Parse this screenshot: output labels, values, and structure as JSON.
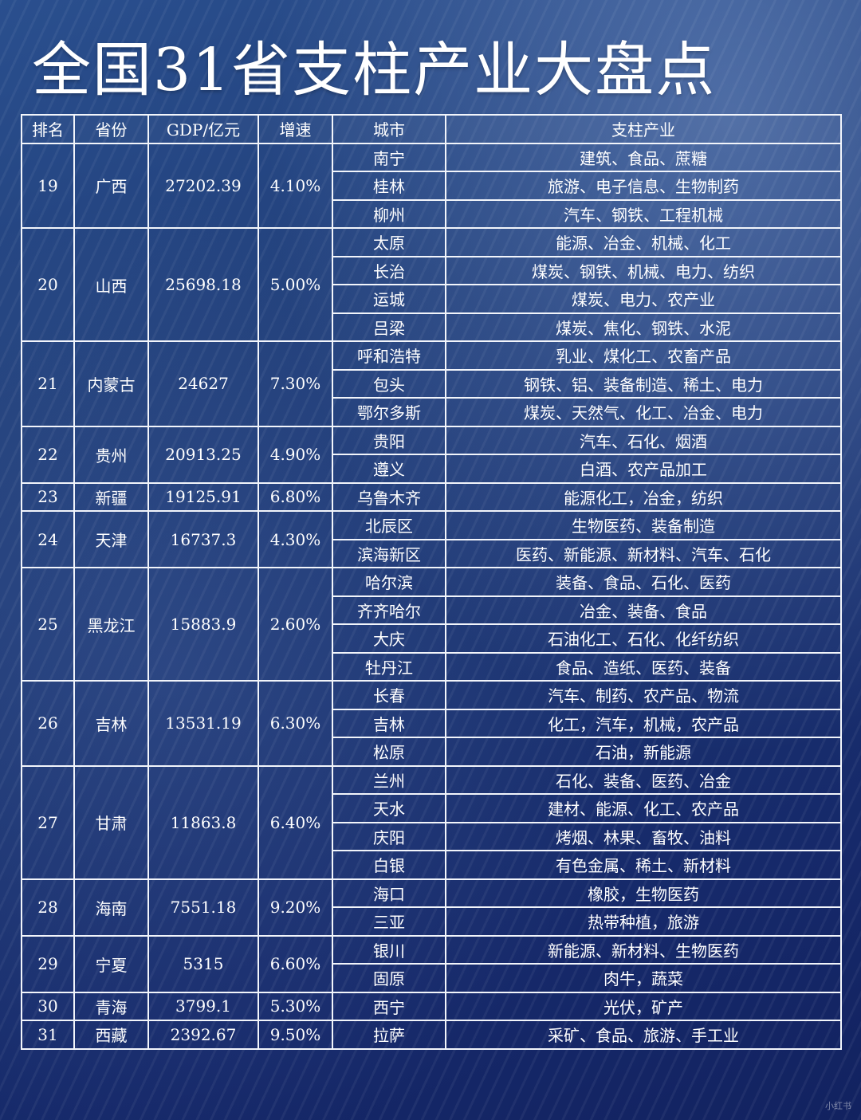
{
  "title": "全国31省支柱产业大盘点",
  "headers": [
    "排名",
    "省份",
    "GDP/亿元",
    "增速",
    "城市",
    "支柱产业"
  ],
  "provinces": [
    {
      "rank": "19",
      "province": "广西",
      "gdp": "27202.39",
      "growth": "4.10%",
      "cities": [
        {
          "city": "南宁",
          "industries": "建筑、食品、蔗糖"
        },
        {
          "city": "桂林",
          "industries": "旅游、电子信息、生物制药"
        },
        {
          "city": "柳州",
          "industries": "汽车、钢铁、工程机械"
        }
      ]
    },
    {
      "rank": "20",
      "province": "山西",
      "gdp": "25698.18",
      "growth": "5.00%",
      "cities": [
        {
          "city": "太原",
          "industries": "能源、冶金、机械、化工"
        },
        {
          "city": "长治",
          "industries": "煤炭、钢铁、机械、电力、纺织"
        },
        {
          "city": "运城",
          "industries": "煤炭、电力、农产业"
        },
        {
          "city": "吕梁",
          "industries": "煤炭、焦化、钢铁、水泥"
        }
      ]
    },
    {
      "rank": "21",
      "province": "内蒙古",
      "gdp": "24627",
      "growth": "7.30%",
      "cities": [
        {
          "city": "呼和浩特",
          "industries": "乳业、煤化工、农畜产品"
        },
        {
          "city": "包头",
          "industries": "钢铁、铝、装备制造、稀土、电力"
        },
        {
          "city": "鄂尔多斯",
          "industries": "煤炭、天然气、化工、冶金、电力"
        }
      ]
    },
    {
      "rank": "22",
      "province": "贵州",
      "gdp": "20913.25",
      "growth": "4.90%",
      "cities": [
        {
          "city": "贵阳",
          "industries": "汽车、石化、烟酒"
        },
        {
          "city": "遵义",
          "industries": "白酒、农产品加工"
        }
      ]
    },
    {
      "rank": "23",
      "province": "新疆",
      "gdp": "19125.91",
      "growth": "6.80%",
      "cities": [
        {
          "city": "乌鲁木齐",
          "industries": "能源化工，冶金，纺织"
        }
      ]
    },
    {
      "rank": "24",
      "province": "天津",
      "gdp": "16737.3",
      "growth": "4.30%",
      "cities": [
        {
          "city": "北辰区",
          "industries": "生物医药、装备制造"
        },
        {
          "city": "滨海新区",
          "industries": "医药、新能源、新材料、汽车、石化"
        }
      ]
    },
    {
      "rank": "25",
      "province": "黑龙江",
      "gdp": "15883.9",
      "growth": "2.60%",
      "cities": [
        {
          "city": "哈尔滨",
          "industries": "装备、食品、石化、医药"
        },
        {
          "city": "齐齐哈尔",
          "industries": "冶金、装备、食品"
        },
        {
          "city": "大庆",
          "industries": "石油化工、石化、化纤纺织"
        },
        {
          "city": "牡丹江",
          "industries": "食品、造纸、医药、装备"
        }
      ]
    },
    {
      "rank": "26",
      "province": "吉林",
      "gdp": "13531.19",
      "growth": "6.30%",
      "cities": [
        {
          "city": "长春",
          "industries": "汽车、制药、农产品、物流"
        },
        {
          "city": "吉林",
          "industries": "化工，汽车，机械，农产品"
        },
        {
          "city": "松原",
          "industries": "石油，新能源"
        }
      ]
    },
    {
      "rank": "27",
      "province": "甘肃",
      "gdp": "11863.8",
      "growth": "6.40%",
      "cities": [
        {
          "city": "兰州",
          "industries": "石化、装备、医药、冶金"
        },
        {
          "city": "天水",
          "industries": "建材、能源、化工、农产品"
        },
        {
          "city": "庆阳",
          "industries": "烤烟、林果、畜牧、油料"
        },
        {
          "city": "白银",
          "industries": "有色金属、稀土、新材料"
        }
      ]
    },
    {
      "rank": "28",
      "province": "海南",
      "gdp": "7551.18",
      "growth": "9.20%",
      "cities": [
        {
          "city": "海口",
          "industries": "橡胶，生物医药"
        },
        {
          "city": "三亚",
          "industries": "热带种植，旅游"
        }
      ]
    },
    {
      "rank": "29",
      "province": "宁夏",
      "gdp": "5315",
      "growth": "6.60%",
      "cities": [
        {
          "city": "银川",
          "industries": "新能源、新材料、生物医药"
        },
        {
          "city": "固原",
          "industries": "肉牛，蔬菜"
        }
      ]
    },
    {
      "rank": "30",
      "province": "青海",
      "gdp": "3799.1",
      "growth": "5.30%",
      "cities": [
        {
          "city": "西宁",
          "industries": "光伏，矿产"
        }
      ]
    },
    {
      "rank": "31",
      "province": "西藏",
      "gdp": "2392.67",
      "growth": "9.50%",
      "cities": [
        {
          "city": "拉萨",
          "industries": "采矿、食品、旅游、手工业"
        }
      ]
    }
  ],
  "watermark": "小红书"
}
